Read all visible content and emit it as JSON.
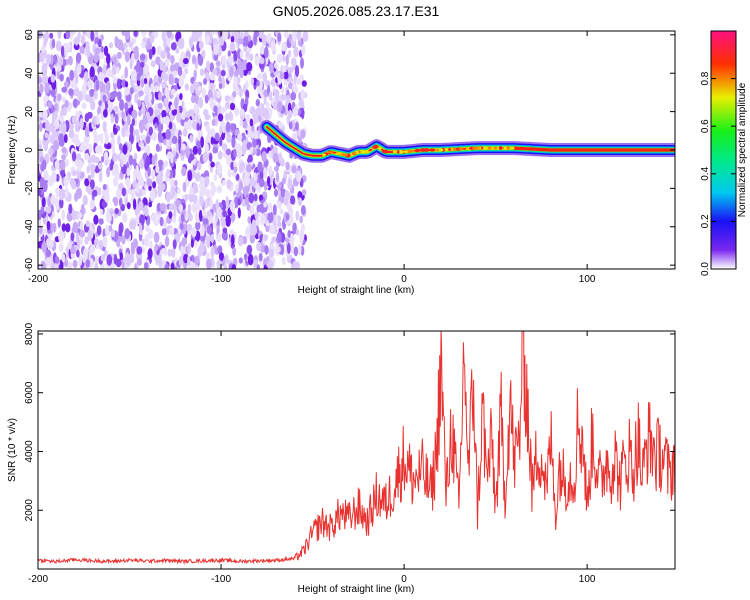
{
  "figure": {
    "title": "GN05.2026.085.23.17.E31"
  },
  "chart_data": [
    {
      "type": "heatmap",
      "title": "GN05.2026.085.23.17.E31",
      "xlabel": "Height of straight line (km)",
      "ylabel": "Frequency (Hz)",
      "xlim": [
        -200,
        148
      ],
      "ylim": [
        -62,
        62
      ],
      "x_ticks": [
        -200,
        -100,
        0,
        100
      ],
      "y_ticks": [
        60,
        40,
        20,
        0,
        -20,
        -40,
        -60
      ],
      "noise_region_x": [
        -200,
        -57
      ],
      "signal_band": {
        "x": [
          -75,
          -65,
          -60,
          -55,
          -50,
          -45,
          -40,
          -35,
          -30,
          -25,
          -20,
          -15,
          -10,
          -5,
          0,
          10,
          20,
          40,
          60,
          80,
          100,
          120,
          148
        ],
        "freq": [
          12,
          4,
          1,
          -2,
          -3,
          -3,
          -1,
          -2,
          -3,
          -1,
          -1,
          2,
          -1,
          -1,
          -1,
          0,
          0,
          1,
          1,
          0,
          0,
          0,
          0
        ],
        "amplitude": [
          0.3,
          0.4,
          0.45,
          0.5,
          0.55,
          0.5,
          0.55,
          0.55,
          0.6,
          0.6,
          0.6,
          0.65,
          0.7,
          0.7,
          0.75,
          0.8,
          0.85,
          0.85,
          0.9,
          0.92,
          0.95,
          0.95,
          0.95
        ]
      },
      "colorbar": {
        "label": "Normalized spectral amplitude",
        "range": [
          0,
          1
        ],
        "ticks": [
          0.0,
          0.2,
          0.4,
          0.6,
          0.8
        ],
        "tick_labels": [
          "0.0",
          "0.2",
          "0.4",
          "0.6",
          "0.8"
        ]
      }
    },
    {
      "type": "line",
      "xlabel": "Height of straight line (km)",
      "ylabel": "SNR (10 * v/v)",
      "xlim": [
        -200,
        148
      ],
      "ylim": [
        0,
        8100
      ],
      "x_ticks": [
        -200,
        -100,
        0,
        100
      ],
      "y_ticks": [
        2000,
        4000,
        6000,
        8000
      ],
      "series": [
        {
          "name": "SNR",
          "color": "#e8322f",
          "x": [
            -200,
            -190,
            -180,
            -170,
            -160,
            -150,
            -140,
            -130,
            -120,
            -110,
            -100,
            -90,
            -80,
            -70,
            -60,
            -55,
            -50,
            -45,
            -40,
            -35,
            -30,
            -25,
            -20,
            -15,
            -10,
            -5,
            0,
            5,
            10,
            15,
            18,
            20,
            23,
            26,
            30,
            33,
            35,
            38,
            40,
            43,
            45,
            48,
            50,
            53,
            55,
            58,
            60,
            63,
            65,
            67,
            70,
            73,
            75,
            78,
            80,
            83,
            85,
            88,
            90,
            93,
            95,
            98,
            100,
            103,
            105,
            108,
            110,
            113,
            115,
            118,
            120,
            123,
            125,
            128,
            130,
            133,
            135,
            138,
            140,
            143,
            145,
            148
          ],
          "values": [
            300,
            250,
            320,
            280,
            260,
            300,
            270,
            290,
            260,
            280,
            300,
            260,
            280,
            300,
            350,
            600,
            1200,
            1600,
            1400,
            1900,
            1700,
            2100,
            1600,
            2500,
            2200,
            2900,
            3800,
            3000,
            3300,
            2600,
            4200,
            7200,
            2500,
            4900,
            2000,
            7800,
            3100,
            6600,
            1800,
            5500,
            3100,
            4300,
            2100,
            5100,
            2400,
            5900,
            3600,
            4400,
            8100,
            6000,
            2600,
            4200,
            3800,
            2600,
            4500,
            1800,
            3600,
            2900,
            3200,
            3100,
            5100,
            4200,
            2000,
            4600,
            3600,
            2800,
            3800,
            3300,
            3900,
            2900,
            3500,
            4000,
            3300,
            4500,
            3000,
            4400,
            4300,
            3800,
            4000,
            3600,
            3100,
            3900
          ]
        }
      ]
    }
  ]
}
